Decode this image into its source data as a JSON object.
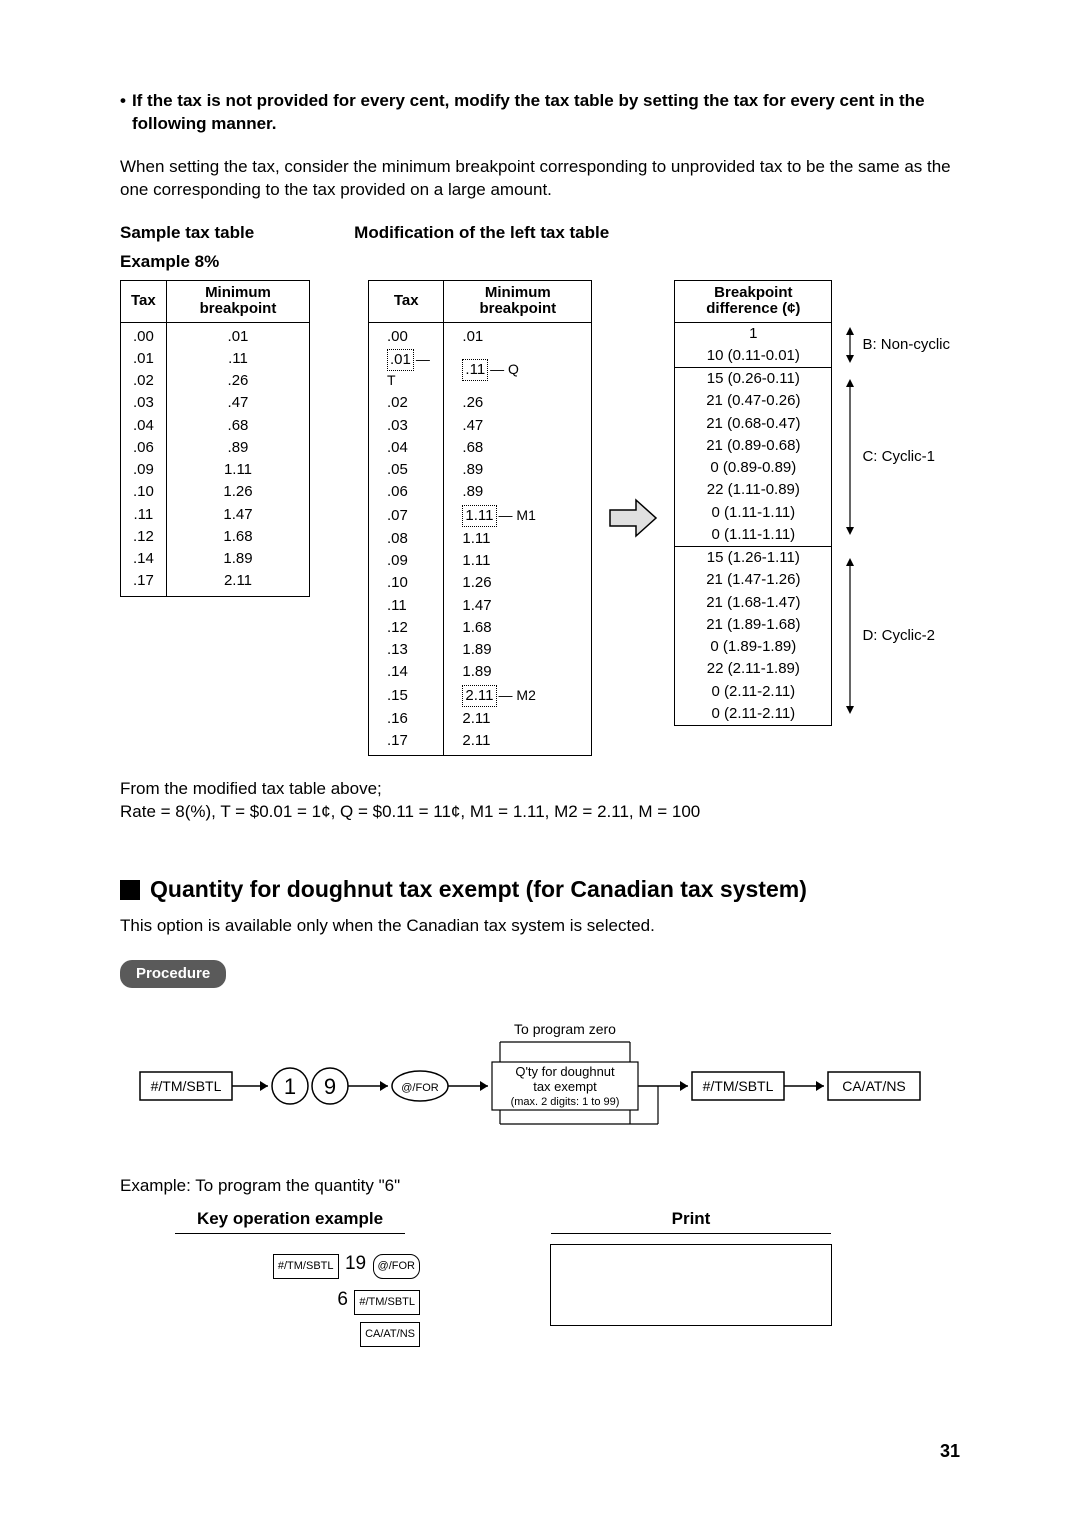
{
  "intro_heading": "If the tax is not provided for every cent, modify the tax table by setting the tax for every cent in the following manner.",
  "intro_paragraph": "When setting the tax, consider the minimum breakpoint corresponding to unprovided tax to be the same as the one corresponding to the tax provided on a large amount.",
  "left_title_line1": "Sample tax table",
  "left_title_line2": "Example 8%",
  "mid_title": "Modification of the left tax table",
  "table_headers": {
    "tax": "Tax",
    "min_bp": "Minimum breakpoint",
    "bp_diff": "Breakpoint difference (¢)"
  },
  "left_table": [
    [
      ".00",
      ".01"
    ],
    [
      ".01",
      ".11"
    ],
    [
      ".02",
      ".26"
    ],
    [
      ".03",
      ".47"
    ],
    [
      ".04",
      ".68"
    ],
    [
      ".06",
      ".89"
    ],
    [
      ".09",
      "1.11"
    ],
    [
      ".10",
      "1.26"
    ],
    [
      ".11",
      "1.47"
    ],
    [
      ".12",
      "1.68"
    ],
    [
      ".14",
      "1.89"
    ],
    [
      ".17",
      "2.11"
    ]
  ],
  "mid_table": [
    {
      "tax": ".00",
      "bp": ".01"
    },
    {
      "tax": ".01",
      "tax_annot": "T",
      "bp": ".11",
      "bp_annot": "Q",
      "dotted": true
    },
    {
      "tax": ".02",
      "bp": ".26"
    },
    {
      "tax": ".03",
      "bp": ".47"
    },
    {
      "tax": ".04",
      "bp": ".68"
    },
    {
      "tax": ".05",
      "bp": ".89"
    },
    {
      "tax": ".06",
      "bp": ".89"
    },
    {
      "tax": ".07",
      "bp": "1.11",
      "bp_annot": "M1",
      "dotted_bp": true
    },
    {
      "tax": ".08",
      "bp": "1.11"
    },
    {
      "tax": ".09",
      "bp": "1.11"
    },
    {
      "tax": ".10",
      "bp": "1.26"
    },
    {
      "tax": ".11",
      "bp": "1.47"
    },
    {
      "tax": ".12",
      "bp": "1.68"
    },
    {
      "tax": ".13",
      "bp": "1.89"
    },
    {
      "tax": ".14",
      "bp": "1.89"
    },
    {
      "tax": ".15",
      "bp": "2.11",
      "bp_annot": "M2",
      "dotted_bp": true
    },
    {
      "tax": ".16",
      "bp": "2.11"
    },
    {
      "tax": ".17",
      "bp": "2.11"
    }
  ],
  "bp_table": {
    "group1": {
      "label": "B: Non-cyclic",
      "rows": [
        "1",
        "10 (0.11-0.01)"
      ]
    },
    "group2": {
      "label": "C: Cyclic-1",
      "rows": [
        "15 (0.26-0.11)",
        "21 (0.47-0.26)",
        "21 (0.68-0.47)",
        "21 (0.89-0.68)",
        "0 (0.89-0.89)",
        "22 (1.11-0.89)",
        "0 (1.11-1.11)",
        "0 (1.11-1.11)"
      ]
    },
    "group3": {
      "label": "D: Cyclic-2",
      "rows": [
        "15 (1.26-1.11)",
        "21 (1.47-1.26)",
        "21 (1.68-1.47)",
        "21 (1.89-1.68)",
        "0 (1.89-1.89)",
        "22 (2.11-1.89)",
        "0 (2.11-2.11)",
        "0 (2.11-2.11)"
      ]
    }
  },
  "derived_line1": "From the modified tax table above;",
  "derived_line2": "Rate = 8(%), T = $0.01 = 1¢, Q = $0.11 = 11¢, M1 = 1.11, M2 = 2.11, M = 100",
  "section_title": "Quantity for doughnut tax exempt (for Canadian tax system)",
  "section_intro": "This option is available only when the Canadian tax system is selected.",
  "procedure_label": "Procedure",
  "diagram": {
    "key1": "#/TM/SBTL",
    "digit1": "1",
    "digit2": "9",
    "key_oval": "@/FOR",
    "box_top": "To program zero",
    "box_line1": "Q'ty for doughnut",
    "box_line2": "tax exempt",
    "box_line3": "(max. 2 digits: 1 to 99)",
    "key2": "#/TM/SBTL",
    "key3": "CA/AT/NS"
  },
  "example_intro": "Example:  To program the quantity \"6\"",
  "key_op_header": "Key operation example",
  "print_header": "Print",
  "key_ops": {
    "line1_num": "19",
    "line1_k1": "#/TM/SBTL",
    "line1_k2": "@/FOR",
    "line2_num": "6",
    "line2_k": "#/TM/SBTL",
    "line3_k": "CA/AT/NS"
  },
  "page_number": "31"
}
